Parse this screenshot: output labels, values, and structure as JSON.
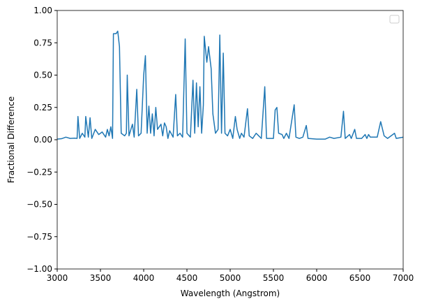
{
  "chart_data": {
    "type": "line",
    "xlabel": "Wavelength (Angstrom)",
    "ylabel": "Fractional Difference",
    "color": "#1f77b4",
    "x": [
      3000,
      3050,
      3100,
      3150,
      3200,
      3230,
      3240,
      3260,
      3290,
      3320,
      3330,
      3360,
      3380,
      3400,
      3440,
      3480,
      3520,
      3560,
      3580,
      3600,
      3620,
      3640,
      3650,
      3680,
      3700,
      3720,
      3740,
      3780,
      3800,
      3810,
      3830,
      3870,
      3890,
      3920,
      3940,
      3970,
      4000,
      4020,
      4040,
      4060,
      4080,
      4100,
      4120,
      4140,
      4160,
      4200,
      4220,
      4240,
      4260,
      4280,
      4300,
      4340,
      4370,
      4390,
      4420,
      4450,
      4480,
      4500,
      4540,
      4570,
      4590,
      4610,
      4630,
      4650,
      4670,
      4690,
      4700,
      4730,
      4750,
      4780,
      4800,
      4830,
      4860,
      4880,
      4900,
      4920,
      4940,
      4970,
      5000,
      5030,
      5060,
      5080,
      5110,
      5130,
      5160,
      5200,
      5220,
      5260,
      5300,
      5330,
      5360,
      5400,
      5420,
      5500,
      5520,
      5540,
      5560,
      5600,
      5620,
      5650,
      5680,
      5740,
      5760,
      5800,
      5840,
      5880,
      5900,
      6000,
      6100,
      6150,
      6200,
      6280,
      6310,
      6330,
      6380,
      6400,
      6440,
      6460,
      6520,
      6560,
      6580,
      6600,
      6620,
      6700,
      6740,
      6780,
      6820,
      6900,
      6920,
      7000
    ],
    "values": [
      0.005,
      0.008,
      0.02,
      0.01,
      0.012,
      0.01,
      0.18,
      0.01,
      0.05,
      0.02,
      0.18,
      0.02,
      0.17,
      0.01,
      0.08,
      0.04,
      0.06,
      0.02,
      0.08,
      0.03,
      0.1,
      0.01,
      0.82,
      0.82,
      0.84,
      0.72,
      0.05,
      0.03,
      0.05,
      0.5,
      0.03,
      0.12,
      0.02,
      0.39,
      0.03,
      0.05,
      0.5,
      0.65,
      0.05,
      0.26,
      0.05,
      0.2,
      0.03,
      0.25,
      0.08,
      0.12,
      0.03,
      0.13,
      0.1,
      0.01,
      0.07,
      0.02,
      0.35,
      0.03,
      0.05,
      0.02,
      0.78,
      0.05,
      0.02,
      0.46,
      0.05,
      0.44,
      0.1,
      0.41,
      0.05,
      0.27,
      0.8,
      0.6,
      0.72,
      0.55,
      0.2,
      0.05,
      0.08,
      0.81,
      0.05,
      0.67,
      0.05,
      0.03,
      0.08,
      0.01,
      0.18,
      0.08,
      0.01,
      0.05,
      0.02,
      0.24,
      0.03,
      0.01,
      0.05,
      0.03,
      0.01,
      0.41,
      0.01,
      0.01,
      0.23,
      0.25,
      0.05,
      0.04,
      0.01,
      0.05,
      0.01,
      0.27,
      0.02,
      0.01,
      0.02,
      0.11,
      0.01,
      0.005,
      0.005,
      0.02,
      0.01,
      0.02,
      0.22,
      0.01,
      0.04,
      0.01,
      0.08,
      0.01,
      0.01,
      0.04,
      0.01,
      0.04,
      0.02,
      0.02,
      0.14,
      0.03,
      0.01,
      0.05,
      0.01,
      0.02
    ],
    "xlim": [
      3000,
      7000
    ],
    "ylim": [
      -1.0,
      1.0
    ],
    "xticks": [
      3000,
      3500,
      4000,
      4500,
      5000,
      5500,
      6000,
      6500,
      7000
    ],
    "yticks": [
      {
        "value": -1.0,
        "label": "−1.00"
      },
      {
        "value": -0.75,
        "label": "−0.75"
      },
      {
        "value": -0.5,
        "label": "−0.50"
      },
      {
        "value": -0.25,
        "label": "−0.25"
      },
      {
        "value": 0,
        "label": "0.00"
      },
      {
        "value": 0.25,
        "label": "0.25"
      },
      {
        "value": 0.5,
        "label": "0.50"
      },
      {
        "value": 0.75,
        "label": "0.75"
      },
      {
        "value": 1.0,
        "label": "1.00"
      }
    ]
  }
}
